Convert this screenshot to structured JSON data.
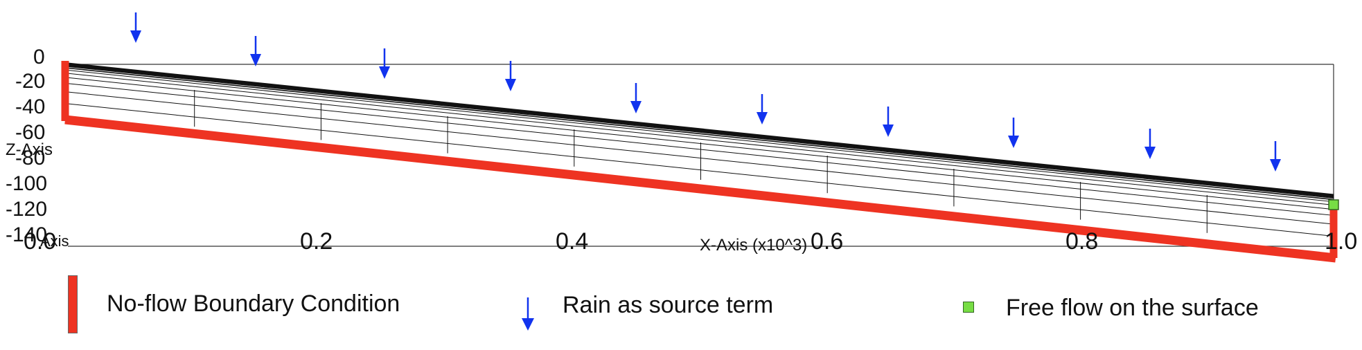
{
  "axes": {
    "z_label": "Z-Axis",
    "x_label": "X-Axis (x10^3)",
    "corner_label": "0.0",
    "corner_label_2": "Axis",
    "z_ticks": [
      "0",
      "-20",
      "-40",
      "-60",
      "-80",
      "-100",
      "-120",
      "-140"
    ],
    "x_ticks": [
      "0.2",
      "0.4",
      "0.6",
      "0.8",
      "1.0"
    ],
    "z_range": [
      -140,
      0
    ],
    "x_range": [
      0,
      1.0
    ]
  },
  "legend": {
    "no_flow": "No-flow Boundary Condition",
    "rain": "Rain as source term",
    "free_flow": "Free flow on the surface"
  },
  "colors": {
    "boundary": "#ee3322",
    "rain": "#1133ee",
    "free_flow": "#77dd44",
    "mesh": "#111111"
  },
  "icons": {
    "rain": "down-arrow-icon",
    "free_flow": "green-square-icon",
    "no_flow": "red-bar-icon"
  }
}
